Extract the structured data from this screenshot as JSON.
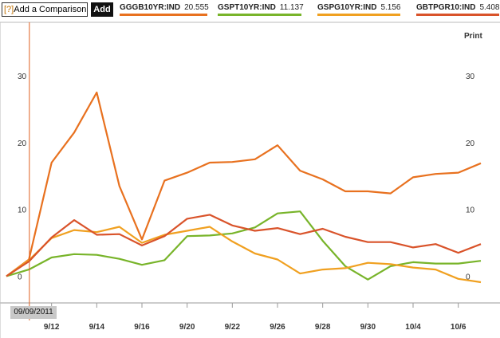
{
  "toolbar": {
    "compare_help": "[?]",
    "compare_label": "Add a Comparison",
    "add_label": "Add",
    "print_label": "Print"
  },
  "legend": [
    {
      "ticker": "GGGB10YR:IND",
      "value": "20.555",
      "color": "#e8711f"
    },
    {
      "ticker": "GSPT10YR:IND",
      "value": "11.137",
      "color": "#78b42a"
    },
    {
      "ticker": "GSPG10YR:IND",
      "value": "5.156",
      "color": "#f0a020"
    },
    {
      "ticker": "GBTPGR10:IND",
      "value": "5.408",
      "color": "#d9532a"
    }
  ],
  "crosshair_date": "09/09/2011",
  "chart_data": {
    "type": "line",
    "x": [
      "9/9",
      "9/10",
      "9/12",
      "9/13",
      "9/14",
      "9/15",
      "9/16",
      "9/19",
      "9/20",
      "9/21",
      "9/22",
      "9/23",
      "9/26",
      "9/27",
      "9/28",
      "9/29",
      "9/30",
      "10/3",
      "10/4",
      "10/5",
      "10/6",
      "10/7"
    ],
    "x_tick_labels": [
      "9/12",
      "9/14",
      "9/16",
      "9/20",
      "9/22",
      "9/26",
      "9/28",
      "9/30",
      "10/4",
      "10/6"
    ],
    "ylim": [
      -4,
      38
    ],
    "y_ticks": [
      0,
      10,
      20,
      30
    ],
    "grid": false,
    "legend_position": "top",
    "series": [
      {
        "name": "GGGB10YR:IND",
        "color": "#e8711f",
        "values": [
          0,
          2.5,
          17,
          21.5,
          27.5,
          13.5,
          5.5,
          14.3,
          15.5,
          17.0,
          17.1,
          17.5,
          19.6,
          15.8,
          14.5,
          12.7,
          12.7,
          12.4,
          14.8,
          15.3,
          15.5,
          16.9
        ]
      },
      {
        "name": "GSPT10YR:IND",
        "color": "#78b42a",
        "values": [
          0,
          1.0,
          2.8,
          3.3,
          3.2,
          2.6,
          1.7,
          2.4,
          6.0,
          6.1,
          6.4,
          7.3,
          9.4,
          9.7,
          5.3,
          1.5,
          -0.5,
          1.5,
          2.1,
          1.9,
          1.9,
          2.3
        ]
      },
      {
        "name": "GSPG10YR:IND",
        "color": "#f0a020",
        "values": [
          0,
          2.4,
          5.7,
          6.9,
          6.6,
          7.4,
          5.0,
          6.2,
          6.8,
          7.4,
          5.2,
          3.4,
          2.5,
          0.4,
          1.0,
          1.2,
          2.0,
          1.8,
          1.3,
          1.0,
          -0.4,
          -0.9
        ]
      },
      {
        "name": "GBTPGR10:IND",
        "color": "#d9532a",
        "values": [
          0,
          2.2,
          5.8,
          8.4,
          6.2,
          6.3,
          4.6,
          6.0,
          8.6,
          9.2,
          7.6,
          6.8,
          7.2,
          6.3,
          7.1,
          5.9,
          5.1,
          5.1,
          4.3,
          4.8,
          3.5,
          4.8
        ]
      }
    ]
  }
}
